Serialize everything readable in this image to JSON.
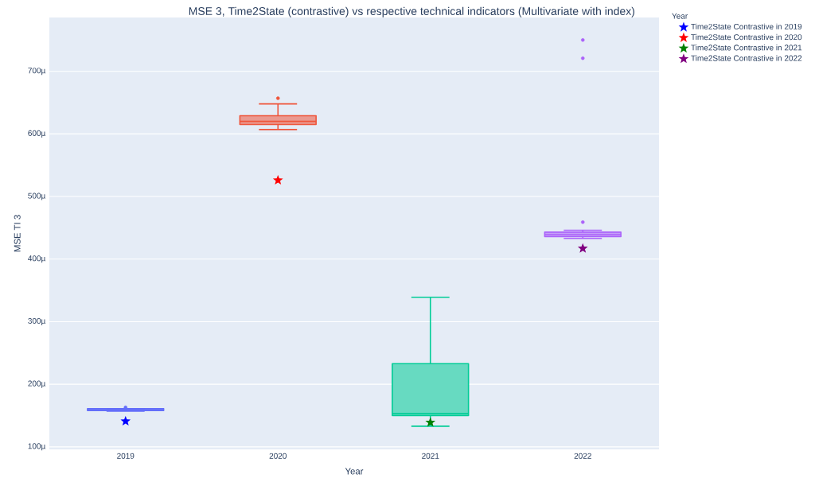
{
  "chart_data": {
    "type": "box",
    "title": "MSE 3, Time2State (contrastive) vs respective technical indicators (Multivariate with index)",
    "xlabel": "Year",
    "ylabel": "MSE TI 3",
    "legend_title": "Year",
    "categories": [
      "2019",
      "2020",
      "2021",
      "2022"
    ],
    "colors": [
      "#636efa",
      "#ef553b",
      "#00cc96",
      "#ab63fa"
    ],
    "boxes": [
      {
        "low": 157,
        "q1": 158,
        "median": 159,
        "q3": 161,
        "high": 161,
        "outliers": [
          163
        ]
      },
      {
        "low": 607,
        "q1": 615,
        "median": 620,
        "q3": 629,
        "high": 648,
        "outliers": [
          657
        ]
      },
      {
        "low": 133,
        "q1": 150,
        "median": 153,
        "q3": 233,
        "high": 339
      },
      {
        "low": 433,
        "q1": 436,
        "median": 439,
        "q3": 443,
        "high": 446,
        "outliers": [
          459,
          721,
          750
        ]
      }
    ],
    "series": [
      {
        "type": "scatter",
        "name": "Time2State Contrastive in 2019",
        "color": "#0000ff",
        "values": [
          141,
          null,
          null,
          null
        ],
        "marker": "star"
      },
      {
        "type": "scatter",
        "name": "Time2State Contrastive in 2020",
        "color": "#ff0000",
        "values": [
          null,
          526,
          null,
          null
        ],
        "marker": "star"
      },
      {
        "type": "scatter",
        "name": "Time2State Contrastive in 2021",
        "color": "#008000",
        "values": [
          null,
          null,
          139,
          null
        ],
        "marker": "star"
      },
      {
        "type": "scatter",
        "name": "Time2State Contrastive in 2022",
        "color": "#800080",
        "values": [
          null,
          null,
          null,
          417
        ],
        "marker": "star"
      }
    ],
    "ylim": [
      96,
      786
    ],
    "yticks": [
      {
        "value": 100,
        "label": "100µ"
      },
      {
        "value": 200,
        "label": "200µ"
      },
      {
        "value": 300,
        "label": "300µ"
      },
      {
        "value": 400,
        "label": "400µ"
      },
      {
        "value": 500,
        "label": "500µ"
      },
      {
        "value": 600,
        "label": "600µ"
      },
      {
        "value": 700,
        "label": "700µ"
      }
    ],
    "grid": "y",
    "legend": "top right"
  }
}
